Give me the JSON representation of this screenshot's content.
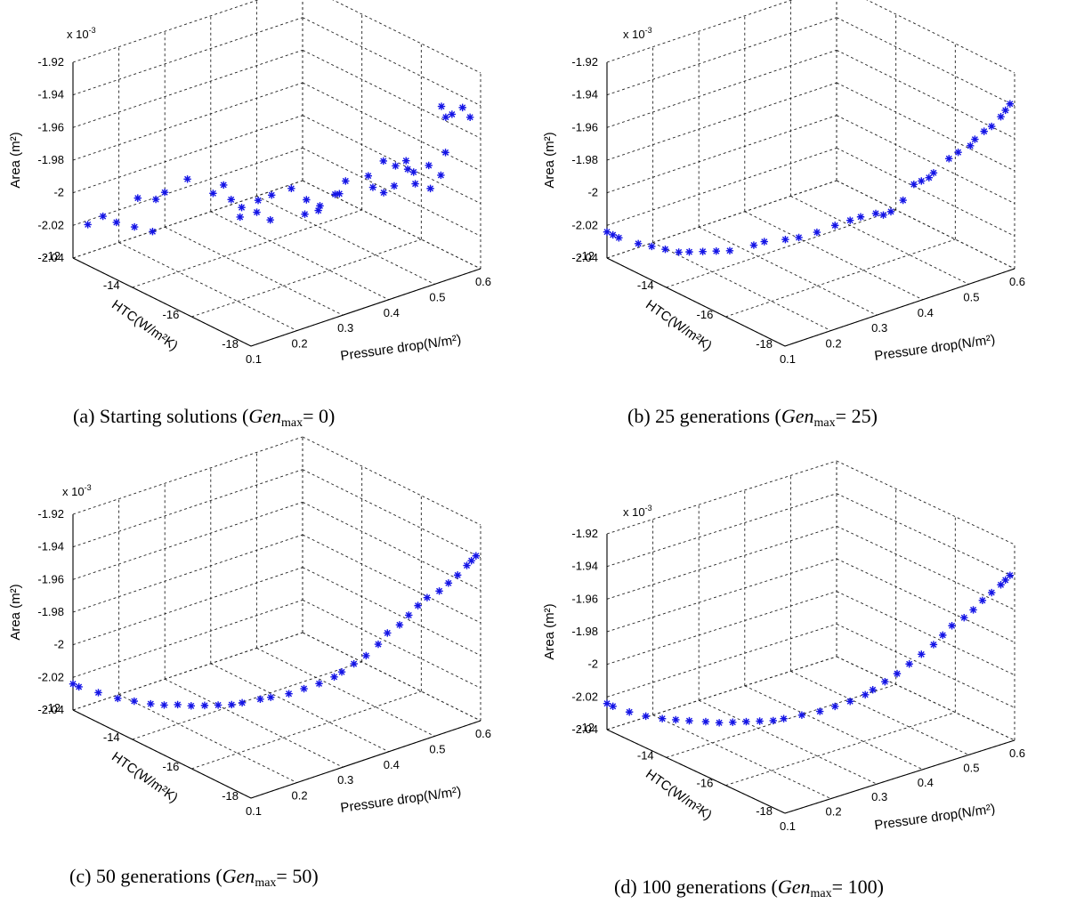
{
  "chart_data": [
    {
      "type": "scatter",
      "caption": {
        "prefix": "(a) Starting solutions (",
        "var": "Gen",
        "sub": "max",
        "suffix": "= 0)"
      },
      "axes": {
        "x": {
          "label": "HTC(W/m²K)",
          "range": [
            -18,
            -12
          ],
          "ticks": [
            "-12",
            "-14",
            "-16",
            "-18"
          ]
        },
        "y": {
          "label": "Pressure drop(N/m²)",
          "range": [
            0.1,
            0.6
          ],
          "ticks": [
            "0.1",
            "0.2",
            "0.3",
            "0.4",
            "0.5",
            "0.6"
          ]
        },
        "z": {
          "label": "Area (m²)",
          "range": [
            -2.04,
            -1.92
          ],
          "ticks": [
            "-1.92",
            "-1.94",
            "-1.96",
            "-1.98",
            "-2",
            "-2.02",
            "-2.04"
          ],
          "exponent": "x 10^-3"
        }
      },
      "grid": true,
      "marker": "*",
      "marker_color": "#1414e6",
      "points": [
        [
          -12.5,
          0.1,
          -2.015
        ],
        [
          -12.7,
          0.12,
          -2.01
        ],
        [
          -13.0,
          0.13,
          -2.012
        ],
        [
          -13.3,
          0.15,
          -2.014
        ],
        [
          -13.6,
          0.17,
          -2.016
        ],
        [
          -13.1,
          0.17,
          -2.0
        ],
        [
          -13.4,
          0.19,
          -2.0
        ],
        [
          -13.7,
          0.19,
          -1.993
        ],
        [
          -14.0,
          0.22,
          -1.985
        ],
        [
          -14.4,
          0.25,
          -1.993
        ],
        [
          -14.7,
          0.27,
          -1.996
        ],
        [
          -15.1,
          0.3,
          -2.003
        ],
        [
          -15.4,
          0.31,
          -2.006
        ],
        [
          -14.9,
          0.28,
          -2.0
        ],
        [
          -15.3,
          0.29,
          -1.993
        ],
        [
          -15.8,
          0.33,
          -1.985
        ],
        [
          -16.0,
          0.35,
          -1.992
        ],
        [
          -16.3,
          0.36,
          -1.994
        ],
        [
          -16.5,
          0.38,
          -1.987
        ],
        [
          -16.7,
          0.39,
          -1.978
        ],
        [
          -14.6,
          0.26,
          -1.987
        ],
        [
          -15.0,
          0.27,
          -2.004
        ],
        [
          -15.6,
          0.3,
          -1.988
        ],
        [
          -16.1,
          0.34,
          -1.999
        ],
        [
          -16.4,
          0.35,
          -1.995
        ],
        [
          -16.8,
          0.37,
          -1.983
        ],
        [
          -17.0,
          0.42,
          -1.975
        ],
        [
          -17.2,
          0.44,
          -1.966
        ],
        [
          -17.3,
          0.46,
          -1.97
        ],
        [
          -17.4,
          0.48,
          -1.973
        ],
        [
          -17.5,
          0.47,
          -1.966
        ],
        [
          -17.6,
          0.48,
          -1.973
        ],
        [
          -17.8,
          0.5,
          -1.969
        ],
        [
          -17.9,
          0.52,
          -1.976
        ],
        [
          -17.0,
          0.43,
          -1.983
        ],
        [
          -16.9,
          0.46,
          -1.99
        ],
        [
          -17.1,
          0.47,
          -1.985
        ],
        [
          -17.5,
          0.49,
          -1.982
        ],
        [
          -17.7,
          0.51,
          -1.985
        ],
        [
          -17.9,
          0.53,
          -1.963
        ],
        [
          -17.3,
          0.56,
          -1.943
        ],
        [
          -17.5,
          0.57,
          -1.947
        ],
        [
          -17.7,
          0.58,
          -1.942
        ],
        [
          -17.6,
          0.55,
          -1.946
        ],
        [
          -17.8,
          0.59,
          -1.948
        ]
      ]
    },
    {
      "type": "scatter",
      "caption": {
        "prefix": "(b) 25 generations (",
        "var": "Gen",
        "sub": "max",
        "suffix": "= 25)"
      },
      "axes": {
        "x": {
          "label": "HTC(W/m²K)",
          "range": [
            -18,
            -12
          ],
          "ticks": [
            "-12",
            "-14",
            "-16",
            "-18"
          ]
        },
        "y": {
          "label": "Pressure drop(N/m²)",
          "range": [
            0.1,
            0.6
          ],
          "ticks": [
            "0.1",
            "0.2",
            "0.3",
            "0.4",
            "0.5",
            "0.6"
          ]
        },
        "z": {
          "label": "Area (m²)",
          "range": [
            -2.04,
            -1.92
          ],
          "ticks": [
            "-1.92",
            "-1.94",
            "-1.96",
            "-1.98",
            "-2",
            "-2.02",
            "-2.04"
          ],
          "exponent": "x 10^-3"
        }
      },
      "grid": true,
      "marker": "*",
      "marker_color": "#1414e6",
      "points": [
        [
          -12.0,
          0.1,
          -2.024
        ],
        [
          -12.2,
          0.1,
          -2.024
        ],
        [
          -12.4,
          0.1,
          -2.024
        ],
        [
          -12.9,
          0.11,
          -2.024
        ],
        [
          -13.2,
          0.12,
          -2.024
        ],
        [
          -13.5,
          0.13,
          -2.024
        ],
        [
          -13.8,
          0.14,
          -2.024
        ],
        [
          -14.0,
          0.15,
          -2.023
        ],
        [
          -14.3,
          0.16,
          -2.021
        ],
        [
          -14.6,
          0.17,
          -2.019
        ],
        [
          -14.9,
          0.18,
          -2.017
        ],
        [
          -15.4,
          0.2,
          -2.011
        ],
        [
          -15.6,
          0.21,
          -2.008
        ],
        [
          -16.0,
          0.23,
          -2.005
        ],
        [
          -16.3,
          0.24,
          -2.002
        ],
        [
          -16.6,
          0.26,
          -1.998
        ],
        [
          -16.9,
          0.28,
          -1.993
        ],
        [
          -17.1,
          0.3,
          -1.99
        ],
        [
          -17.3,
          0.31,
          -1.987
        ],
        [
          -17.5,
          0.33,
          -1.985
        ],
        [
          -17.6,
          0.34,
          -1.986
        ],
        [
          -17.7,
          0.35,
          -1.984
        ],
        [
          -17.8,
          0.37,
          -1.978
        ],
        [
          -17.7,
          0.4,
          -1.972
        ],
        [
          -17.8,
          0.41,
          -1.97
        ],
        [
          -17.9,
          0.42,
          -1.968
        ],
        [
          -17.9,
          0.43,
          -1.966
        ],
        [
          -17.8,
          0.47,
          -1.962
        ],
        [
          -17.8,
          0.49,
          -1.96
        ],
        [
          -17.9,
          0.51,
          -1.957
        ],
        [
          -17.9,
          0.52,
          -1.954
        ],
        [
          -17.9,
          0.54,
          -1.951
        ],
        [
          -18.0,
          0.55,
          -1.948
        ],
        [
          -18.0,
          0.57,
          -1.944
        ],
        [
          -18.0,
          0.58,
          -1.941
        ],
        [
          -18.0,
          0.59,
          -1.938
        ]
      ]
    },
    {
      "type": "scatter",
      "caption": {
        "prefix": "(c) 50 generations (",
        "var": "Gen",
        "sub": "max",
        "suffix": "= 50)"
      },
      "axes": {
        "x": {
          "label": "HTC(W/m²K)",
          "range": [
            -18,
            -12
          ],
          "ticks": [
            "-12",
            "-14",
            "-16",
            "-18"
          ]
        },
        "y": {
          "label": "Pressure drop(N/m²)",
          "range": [
            0.1,
            0.6
          ],
          "ticks": [
            "0.1",
            "0.2",
            "0.3",
            "0.4",
            "0.5",
            "0.6"
          ]
        },
        "z": {
          "label": "Area (m²)",
          "range": [
            -2.04,
            -1.92
          ],
          "ticks": [
            "-1.92",
            "-1.94",
            "-1.96",
            "-1.98",
            "-2",
            "-2.02",
            "-2.04"
          ],
          "exponent": "x 10^-3"
        }
      },
      "grid": true,
      "marker": "*",
      "marker_color": "#1414e6",
      "points": [
        [
          -12.0,
          0.1,
          -2.024
        ],
        [
          -12.2,
          0.1,
          -2.024
        ],
        [
          -12.7,
          0.11,
          -2.024
        ],
        [
          -13.2,
          0.12,
          -2.024
        ],
        [
          -13.6,
          0.13,
          -2.023
        ],
        [
          -14.0,
          0.14,
          -2.022
        ],
        [
          -14.3,
          0.15,
          -2.021
        ],
        [
          -14.6,
          0.16,
          -2.019
        ],
        [
          -14.9,
          0.17,
          -2.018
        ],
        [
          -15.2,
          0.18,
          -2.016
        ],
        [
          -15.5,
          0.19,
          -2.014
        ],
        [
          -15.8,
          0.2,
          -2.012
        ],
        [
          -16.0,
          0.21,
          -2.01
        ],
        [
          -16.3,
          0.23,
          -2.007
        ],
        [
          -16.5,
          0.24,
          -2.005
        ],
        [
          -16.8,
          0.26,
          -2.002
        ],
        [
          -17.0,
          0.28,
          -1.999
        ],
        [
          -17.2,
          0.3,
          -1.996
        ],
        [
          -17.4,
          0.32,
          -1.992
        ],
        [
          -17.5,
          0.33,
          -1.989
        ],
        [
          -17.6,
          0.35,
          -1.985
        ],
        [
          -17.7,
          0.37,
          -1.981
        ],
        [
          -17.8,
          0.39,
          -1.975
        ],
        [
          -17.8,
          0.41,
          -1.97
        ],
        [
          -17.9,
          0.43,
          -1.966
        ],
        [
          -17.9,
          0.45,
          -1.962
        ],
        [
          -17.9,
          0.47,
          -1.958
        ],
        [
          -17.9,
          0.49,
          -1.955
        ],
        [
          -18.0,
          0.51,
          -1.952
        ],
        [
          -18.0,
          0.53,
          -1.949
        ],
        [
          -18.0,
          0.55,
          -1.946
        ],
        [
          -18.0,
          0.57,
          -1.942
        ],
        [
          -18.0,
          0.58,
          -1.94
        ],
        [
          -18.0,
          0.59,
          -1.938
        ]
      ]
    },
    {
      "type": "scatter",
      "caption": {
        "prefix": "(d) 100 generations (",
        "var": "Gen",
        "sub": "max",
        "suffix": "= 100)"
      },
      "axes": {
        "x": {
          "label": "HTC(W/m²K)",
          "range": [
            -18,
            -12
          ],
          "ticks": [
            "-12",
            "-14",
            "-16",
            "-18"
          ]
        },
        "y": {
          "label": "Pressure drop(N/m²)",
          "range": [
            0.1,
            0.6
          ],
          "ticks": [
            "0.1",
            "0.2",
            "0.3",
            "0.4",
            "0.5",
            "0.6"
          ]
        },
        "z": {
          "label": "Area (m²)",
          "range": [
            -2.04,
            -1.92
          ],
          "ticks": [
            "-1.92",
            "-1.94",
            "-1.96",
            "-1.98",
            "-2",
            "-2.02",
            "-2.04"
          ],
          "exponent": "x 10^-3"
        }
      },
      "grid": true,
      "marker": "*",
      "marker_color": "#1414e6",
      "points": [
        [
          -12.0,
          0.1,
          -2.024
        ],
        [
          -12.2,
          0.1,
          -2.024
        ],
        [
          -12.6,
          0.11,
          -2.025
        ],
        [
          -13.0,
          0.12,
          -2.025
        ],
        [
          -13.4,
          0.13,
          -2.024
        ],
        [
          -13.7,
          0.14,
          -2.023
        ],
        [
          -14.0,
          0.15,
          -2.022
        ],
        [
          -14.4,
          0.16,
          -2.02
        ],
        [
          -14.7,
          0.17,
          -2.019
        ],
        [
          -15.0,
          0.18,
          -2.017
        ],
        [
          -15.3,
          0.19,
          -2.015
        ],
        [
          -15.6,
          0.2,
          -2.013
        ],
        [
          -15.9,
          0.21,
          -2.011
        ],
        [
          -16.1,
          0.22,
          -2.009
        ],
        [
          -16.4,
          0.24,
          -2.006
        ],
        [
          -16.7,
          0.26,
          -2.003
        ],
        [
          -16.9,
          0.28,
          -2.0
        ],
        [
          -17.1,
          0.3,
          -1.997
        ],
        [
          -17.3,
          0.32,
          -1.993
        ],
        [
          -17.4,
          0.33,
          -1.99
        ],
        [
          -17.5,
          0.35,
          -1.986
        ],
        [
          -17.6,
          0.37,
          -1.982
        ],
        [
          -17.7,
          0.39,
          -1.977
        ],
        [
          -17.8,
          0.41,
          -1.972
        ],
        [
          -17.9,
          0.43,
          -1.967
        ],
        [
          -17.9,
          0.45,
          -1.963
        ],
        [
          -17.9,
          0.47,
          -1.959
        ],
        [
          -18.0,
          0.49,
          -1.955
        ],
        [
          -18.0,
          0.51,
          -1.952
        ],
        [
          -18.0,
          0.53,
          -1.948
        ],
        [
          -18.0,
          0.55,
          -1.945
        ],
        [
          -18.0,
          0.57,
          -1.942
        ],
        [
          -18.0,
          0.58,
          -1.94
        ],
        [
          -18.0,
          0.59,
          -1.938
        ]
      ]
    }
  ]
}
